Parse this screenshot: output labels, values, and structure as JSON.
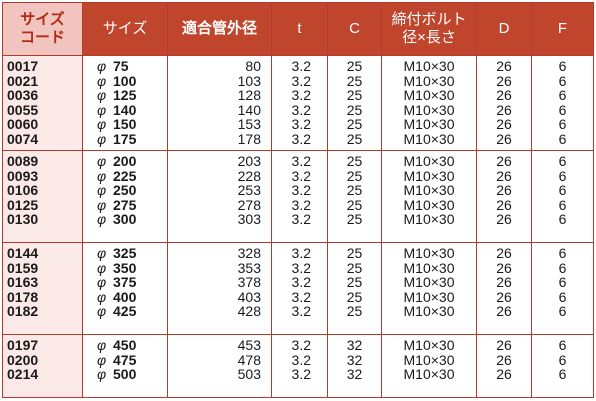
{
  "headers": {
    "code": [
      "サイズ",
      "コード"
    ],
    "size": "サイズ",
    "pipe_od": "適合管外径",
    "t": "t",
    "c": "C",
    "bolt": [
      "締付ボルト",
      "径×長さ"
    ],
    "d": "D",
    "f": "F"
  },
  "phi_symbol": "φ",
  "groups": [
    {
      "codes": [
        "0017",
        "0021",
        "0036",
        "0055",
        "0060",
        "0074"
      ],
      "sizes": [
        "75",
        "100",
        "125",
        "140",
        "150",
        "175"
      ],
      "pipe_od": [
        "80",
        "103",
        "128",
        "140",
        "153",
        "178"
      ],
      "t": [
        "3.2",
        "3.2",
        "3.2",
        "3.2",
        "3.2",
        "3.2"
      ],
      "c": [
        "25",
        "25",
        "25",
        "25",
        "25",
        "25"
      ],
      "bolt": [
        "M10×30",
        "M10×30",
        "M10×30",
        "M10×30",
        "M10×30",
        "M10×30"
      ],
      "d": [
        "26",
        "26",
        "26",
        "26",
        "26",
        "26"
      ],
      "f": [
        "6",
        "6",
        "6",
        "6",
        "6",
        "6"
      ]
    },
    {
      "codes": [
        "0089",
        "0093",
        "0106",
        "0125",
        "0130"
      ],
      "sizes": [
        "200",
        "225",
        "250",
        "275",
        "300"
      ],
      "pipe_od": [
        "203",
        "228",
        "253",
        "278",
        "303"
      ],
      "t": [
        "3.2",
        "3.2",
        "3.2",
        "3.2",
        "3.2"
      ],
      "c": [
        "25",
        "25",
        "25",
        "25",
        "25"
      ],
      "bolt": [
        "M10×30",
        "M10×30",
        "M10×30",
        "M10×30",
        "M10×30"
      ],
      "d": [
        "26",
        "26",
        "26",
        "26",
        "26"
      ],
      "f": [
        "6",
        "6",
        "6",
        "6",
        "6"
      ]
    },
    {
      "codes": [
        "0144",
        "0159",
        "0163",
        "0178",
        "0182"
      ],
      "sizes": [
        "325",
        "350",
        "375",
        "400",
        "425"
      ],
      "pipe_od": [
        "328",
        "353",
        "378",
        "403",
        "428"
      ],
      "t": [
        "3.2",
        "3.2",
        "3.2",
        "3.2",
        "3.2"
      ],
      "c": [
        "25",
        "25",
        "25",
        "25",
        "25"
      ],
      "bolt": [
        "M10×30",
        "M10×30",
        "M10×30",
        "M10×30",
        "M10×30"
      ],
      "d": [
        "26",
        "26",
        "26",
        "26",
        "26"
      ],
      "f": [
        "6",
        "6",
        "6",
        "6",
        "6"
      ]
    },
    {
      "codes": [
        "0197",
        "0200",
        "0214"
      ],
      "sizes": [
        "450",
        "475",
        "500"
      ],
      "pipe_od": [
        "453",
        "478",
        "503"
      ],
      "t": [
        "3.2",
        "3.2",
        "3.2"
      ],
      "c": [
        "32",
        "32",
        "32"
      ],
      "bolt": [
        "M10×30",
        "M10×30",
        "M10×30"
      ],
      "d": [
        "26",
        "26",
        "26"
      ],
      "f": [
        "6",
        "6",
        "6"
      ]
    }
  ]
}
